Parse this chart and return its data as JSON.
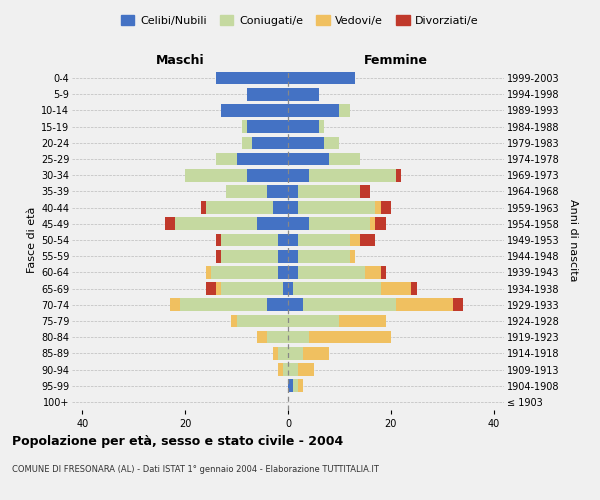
{
  "age_groups": [
    "100+",
    "95-99",
    "90-94",
    "85-89",
    "80-84",
    "75-79",
    "70-74",
    "65-69",
    "60-64",
    "55-59",
    "50-54",
    "45-49",
    "40-44",
    "35-39",
    "30-34",
    "25-29",
    "20-24",
    "15-19",
    "10-14",
    "5-9",
    "0-4"
  ],
  "birth_years": [
    "≤ 1903",
    "1904-1908",
    "1909-1913",
    "1914-1918",
    "1919-1923",
    "1924-1928",
    "1929-1933",
    "1934-1938",
    "1939-1943",
    "1944-1948",
    "1949-1953",
    "1954-1958",
    "1959-1963",
    "1964-1968",
    "1969-1973",
    "1974-1978",
    "1979-1983",
    "1984-1988",
    "1989-1993",
    "1994-1998",
    "1999-2003"
  ],
  "colors": {
    "celibi": "#4472c4",
    "coniugati": "#c5d9a0",
    "vedovi": "#f0c060",
    "divorziati": "#c0392b"
  },
  "maschi": {
    "celibi": [
      0,
      0,
      0,
      0,
      0,
      0,
      4,
      1,
      2,
      2,
      2,
      6,
      3,
      4,
      8,
      10,
      7,
      8,
      13,
      8,
      14
    ],
    "coniugati": [
      0,
      0,
      1,
      2,
      4,
      10,
      17,
      12,
      13,
      11,
      11,
      16,
      13,
      8,
      12,
      4,
      2,
      1,
      0,
      0,
      0
    ],
    "vedovi": [
      0,
      0,
      1,
      1,
      2,
      1,
      2,
      1,
      1,
      0,
      0,
      0,
      0,
      0,
      0,
      0,
      0,
      0,
      0,
      0,
      0
    ],
    "divorziati": [
      0,
      0,
      0,
      0,
      0,
      0,
      0,
      2,
      0,
      1,
      1,
      2,
      1,
      0,
      0,
      0,
      0,
      0,
      0,
      0,
      0
    ]
  },
  "femmine": {
    "nubili": [
      0,
      1,
      0,
      0,
      0,
      0,
      3,
      1,
      2,
      2,
      2,
      4,
      2,
      2,
      4,
      8,
      7,
      6,
      10,
      6,
      13
    ],
    "coniugate": [
      0,
      1,
      2,
      3,
      4,
      10,
      18,
      17,
      13,
      10,
      10,
      12,
      15,
      12,
      17,
      6,
      3,
      1,
      2,
      0,
      0
    ],
    "vedove": [
      0,
      1,
      3,
      5,
      16,
      9,
      11,
      6,
      3,
      1,
      2,
      1,
      1,
      0,
      0,
      0,
      0,
      0,
      0,
      0,
      0
    ],
    "divorziate": [
      0,
      0,
      0,
      0,
      0,
      0,
      2,
      1,
      1,
      0,
      3,
      2,
      2,
      2,
      1,
      0,
      0,
      0,
      0,
      0,
      0
    ]
  },
  "title": "Popolazione per età, sesso e stato civile - 2004",
  "subtitle": "COMUNE DI FRESONARA (AL) - Dati ISTAT 1° gennaio 2004 - Elaborazione TUTTITALIA.IT",
  "ylabel_left": "Fasce di età",
  "ylabel_right": "Anni di nascita",
  "xlabel_maschi": "Maschi",
  "xlabel_femmine": "Femmine",
  "xlim": 42,
  "bg_color": "#f0f0f0"
}
